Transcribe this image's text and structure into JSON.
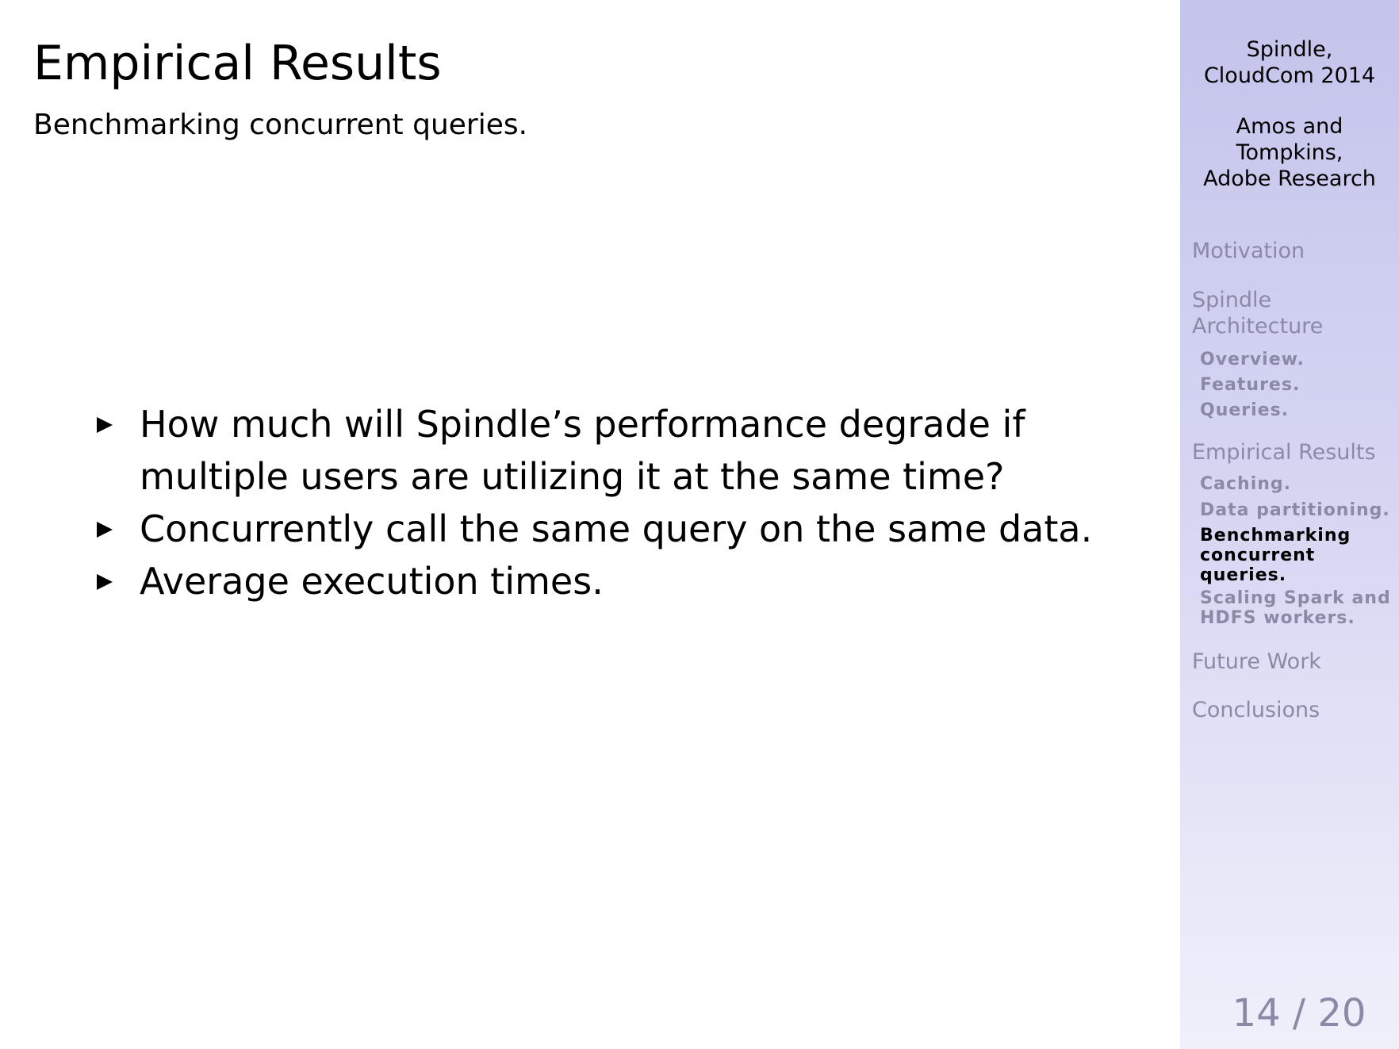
{
  "slide": {
    "title": "Empirical Results",
    "subtitle": "Benchmarking concurrent queries.",
    "bullets": [
      "How much will Spindle’s performance degrade if multiple users are utilizing it at the same time?",
      "Concurrently call the same query on the same data.",
      "Average execution times."
    ]
  },
  "sidebar": {
    "talk_title": [
      "Spindle,",
      "CloudCom 2014"
    ],
    "authors": [
      "Amos and",
      "Tompkins,",
      "Adobe Research"
    ],
    "sections": {
      "motivation": [
        "Motivation"
      ],
      "architecture": [
        "Spindle",
        "Architecture"
      ],
      "empirical": [
        "Empirical Results"
      ],
      "future": [
        "Future Work"
      ],
      "conclusions": [
        "Conclusions"
      ]
    },
    "subsections": {
      "overview": [
        "Overview."
      ],
      "features": [
        "Features."
      ],
      "queries": [
        "Queries."
      ],
      "caching": [
        "Caching."
      ],
      "partitioning": [
        "Data partitioning."
      ],
      "benchmarking": [
        "Benchmarking",
        "concurrent",
        "queries."
      ],
      "scaling": [
        "Scaling Spark and",
        "HDFS workers."
      ]
    }
  },
  "page": {
    "current": 14,
    "total": 20,
    "label": "14 / 20"
  },
  "colors": {
    "sidebar_top": "#c4c4ec",
    "sidebar_bottom": "#f0f0fb",
    "inactive_nav": "#8a8aa6",
    "active_nav": "#000000"
  }
}
